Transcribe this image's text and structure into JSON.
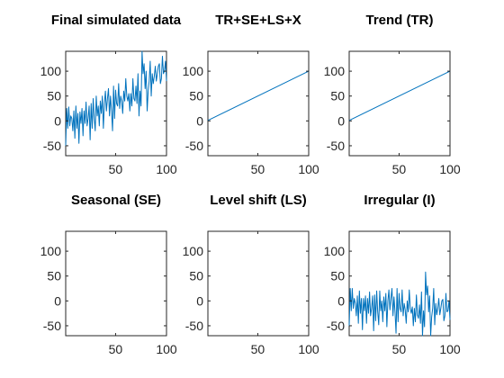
{
  "figure": {
    "background": "#ffffff",
    "line_color": "#0072BD",
    "axis_color": "#262626"
  },
  "chart_data": [
    {
      "type": "line",
      "title": "Final simulated data",
      "xlim": [
        1,
        100
      ],
      "ylim": [
        -70,
        140
      ],
      "xticks": [
        50,
        100
      ],
      "yticks": [
        -50,
        0,
        50,
        100
      ],
      "series": [
        {
          "x": [
            1,
            2,
            3,
            4,
            5,
            6,
            7,
            8,
            9,
            10,
            11,
            12,
            13,
            14,
            15,
            16,
            17,
            18,
            19,
            20,
            21,
            22,
            23,
            24,
            25,
            26,
            27,
            28,
            29,
            30,
            31,
            32,
            33,
            34,
            35,
            36,
            37,
            38,
            39,
            40,
            41,
            42,
            43,
            44,
            45,
            46,
            47,
            48,
            49,
            50,
            51,
            52,
            53,
            54,
            55,
            56,
            57,
            58,
            59,
            60,
            61,
            62,
            63,
            64,
            65,
            66,
            67,
            68,
            69,
            70,
            71,
            72,
            73,
            74,
            75,
            76,
            77,
            78,
            79,
            80,
            81,
            82,
            83,
            84,
            85,
            86,
            87,
            88,
            89,
            90,
            91,
            92,
            93,
            94,
            95,
            96,
            97,
            98,
            99,
            100
          ],
          "y": [
            -50,
            25,
            -15,
            28,
            -10,
            10,
            5,
            -20,
            20,
            -35,
            30,
            -15,
            15,
            -45,
            18,
            -5,
            25,
            -30,
            20,
            -5,
            38,
            -10,
            5,
            30,
            -38,
            35,
            -15,
            45,
            5,
            -20,
            50,
            10,
            30,
            -10,
            40,
            15,
            50,
            -15,
            35,
            60,
            20,
            45,
            65,
            10,
            50,
            20,
            -20,
            70,
            5,
            62,
            35,
            30,
            75,
            25,
            50,
            40,
            15,
            60,
            40,
            85,
            50,
            40,
            55,
            20,
            55,
            30,
            85,
            45,
            40,
            70,
            35,
            95,
            10,
            60,
            30,
            140,
            95,
            115,
            65,
            100,
            20,
            60,
            80,
            120,
            50,
            95,
            75,
            90,
            110,
            80,
            95,
            110,
            115,
            75,
            85,
            130,
            95,
            100,
            120,
            80
          ]
        }
      ]
    },
    {
      "type": "line",
      "title": "TR+SE+LS+X",
      "xlim": [
        1,
        100
      ],
      "ylim": [
        -70,
        140
      ],
      "xticks": [
        50,
        100
      ],
      "yticks": [
        -50,
        0,
        50,
        100
      ],
      "series": [
        {
          "x": [
            1,
            100
          ],
          "y": [
            1,
            100
          ]
        }
      ]
    },
    {
      "type": "line",
      "title": "Trend (TR)",
      "xlim": [
        1,
        100
      ],
      "ylim": [
        -70,
        140
      ],
      "xticks": [
        50,
        100
      ],
      "yticks": [
        -50,
        0,
        50,
        100
      ],
      "series": [
        {
          "x": [
            1,
            100
          ],
          "y": [
            1,
            100
          ]
        }
      ]
    },
    {
      "type": "line",
      "title": "Seasonal (SE)",
      "xlim": [
        1,
        100
      ],
      "ylim": [
        -70,
        140
      ],
      "xticks": [
        50,
        100
      ],
      "yticks": [
        -50,
        0,
        50,
        100
      ],
      "series": []
    },
    {
      "type": "line",
      "title": "Level shift (LS)",
      "xlim": [
        1,
        100
      ],
      "ylim": [
        -70,
        140
      ],
      "xticks": [
        50,
        100
      ],
      "yticks": [
        -50,
        0,
        50,
        100
      ],
      "series": []
    },
    {
      "type": "line",
      "title": "Irregular (I)",
      "xlim": [
        1,
        100
      ],
      "ylim": [
        -70,
        140
      ],
      "xticks": [
        50,
        100
      ],
      "yticks": [
        -50,
        0,
        50,
        100
      ],
      "series": [
        {
          "x": [
            1,
            2,
            3,
            4,
            5,
            6,
            7,
            8,
            9,
            10,
            11,
            12,
            13,
            14,
            15,
            16,
            17,
            18,
            19,
            20,
            21,
            22,
            23,
            24,
            25,
            26,
            27,
            28,
            29,
            30,
            31,
            32,
            33,
            34,
            35,
            36,
            37,
            38,
            39,
            40,
            41,
            42,
            43,
            44,
            45,
            46,
            47,
            48,
            49,
            50,
            51,
            52,
            53,
            54,
            55,
            56,
            57,
            58,
            59,
            60,
            61,
            62,
            63,
            64,
            65,
            66,
            67,
            68,
            69,
            70,
            71,
            72,
            73,
            74,
            75,
            76,
            77,
            78,
            79,
            80,
            81,
            82,
            83,
            84,
            85,
            86,
            87,
            88,
            89,
            90,
            91,
            92,
            93,
            94,
            95,
            96,
            97,
            98,
            99,
            100
          ],
          "y": [
            -50,
            25,
            -20,
            25,
            -15,
            5,
            -5,
            -30,
            10,
            -45,
            20,
            -25,
            5,
            -58,
            5,
            -20,
            10,
            -45,
            5,
            -25,
            18,
            -30,
            -15,
            10,
            -60,
            12,
            -40,
            20,
            -22,
            -48,
            20,
            -20,
            0,
            -42,
            8,
            -20,
            15,
            -52,
            0,
            22,
            -18,
            6,
            25,
            -30,
            8,
            -22,
            -65,
            25,
            -42,
            15,
            -15,
            -22,
            22,
            -30,
            -5,
            -18,
            -45,
            0,
            -22,
            22,
            -15,
            -25,
            -12,
            -50,
            -15,
            -42,
            12,
            -28,
            -35,
            -8,
            -45,
            18,
            -70,
            -20,
            -52,
            58,
            12,
            30,
            -22,
            10,
            -70,
            -32,
            -15,
            25,
            -48,
            -5,
            -28,
            -15,
            5,
            -28,
            -15,
            0,
            3,
            -40,
            -30,
            15,
            -22,
            -20,
            0,
            -38
          ]
        }
      ]
    }
  ]
}
